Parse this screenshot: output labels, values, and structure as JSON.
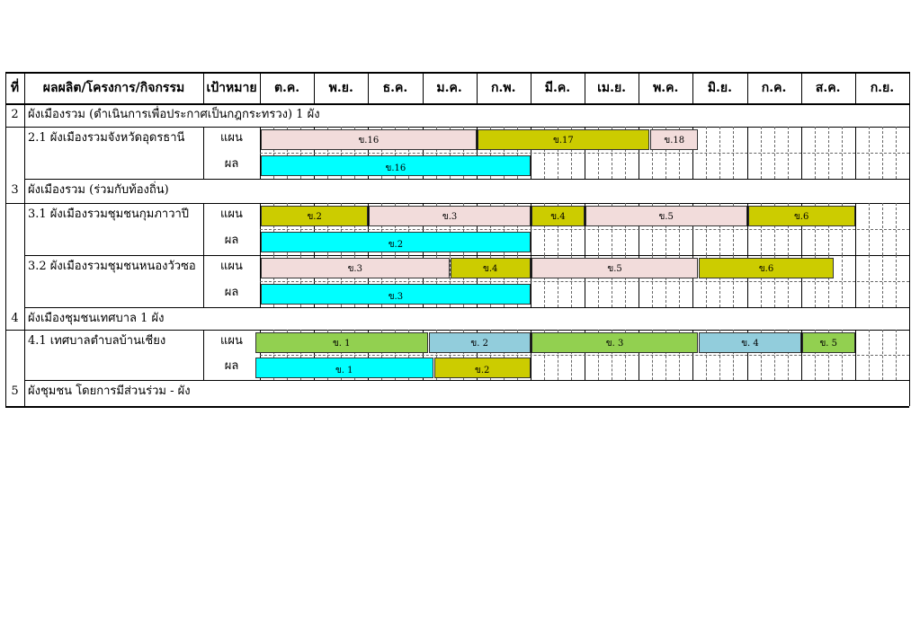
{
  "header": {
    "no": "ที่",
    "product": "ผลผลิต/โครงการ/กิจกรรม",
    "target": "เป้าหมาย",
    "months": [
      "ต.ค.",
      "พ.ย.",
      "ธ.ค.",
      "ม.ค.",
      "ก.พ.",
      "มี.ค.",
      "เม.ย.",
      "พ.ค.",
      "มิ.ย.",
      "ก.ค.",
      "ส.ค.",
      "ก.ย."
    ]
  },
  "sections": [
    {
      "no": "2",
      "title": "ผังเมืองรวม (ดำเนินการเพื่อประกาศเป็นกฎกระทรวง)  1 ผัง"
    },
    {
      "no": "3",
      "title": "ผังเมืองรวม (ร่วมกับท้องถิ่น)"
    },
    {
      "no": "4",
      "title": "ผังเมืองชุมชนเทศบาล  1   ผัง"
    },
    {
      "no": "5",
      "title": "ผังชุมชน โดยการมีส่วนร่วม -  ผัง"
    }
  ],
  "items": [
    {
      "name": "2.1 ผังเมืองรวมจังหวัดอุดรธานี",
      "plan_label": "แผน",
      "result_label": "ผล",
      "plan": [
        {
          "label": "ข.16",
          "start": 0,
          "end": 4,
          "color": "#f2dcdb"
        },
        {
          "label": "ข.17",
          "start": 4,
          "end": 7.2,
          "color": "#cccc00"
        },
        {
          "label": "ข.18",
          "start": 7.2,
          "end": 8.1,
          "color": "#f2dcdb"
        }
      ],
      "result": [
        {
          "label": "ข.16",
          "start": 0,
          "end": 5,
          "color": "#00ffff"
        }
      ]
    },
    {
      "name": "3.1 ผังเมืองรวมชุมชนกุมภาวาปี",
      "plan_label": "แผน",
      "result_label": "ผล",
      "plan": [
        {
          "label": "ข.2",
          "start": 0,
          "end": 2,
          "color": "#cccc00"
        },
        {
          "label": "ข.3",
          "start": 2,
          "end": 5,
          "color": "#f2dcdb"
        },
        {
          "label": "ข.4",
          "start": 5,
          "end": 6,
          "color": "#cccc00"
        },
        {
          "label": "ข.5",
          "start": 6,
          "end": 9,
          "color": "#f2dcdb"
        },
        {
          "label": "ข.6",
          "start": 9,
          "end": 11,
          "color": "#cccc00"
        }
      ],
      "result": [
        {
          "label": "ข.2",
          "start": 0,
          "end": 5,
          "color": "#00ffff"
        }
      ]
    },
    {
      "name": "3.2 ผังเมืองรวมชุมชนหนองวัวซอ",
      "plan_label": "แผน",
      "result_label": "ผล",
      "plan": [
        {
          "label": "ข.3",
          "start": 0,
          "end": 3.5,
          "color": "#f2dcdb"
        },
        {
          "label": "ข.4",
          "start": 3.5,
          "end": 5,
          "color": "#cccc00"
        },
        {
          "label": "ข.5",
          "start": 5,
          "end": 8.1,
          "color": "#f2dcdb"
        },
        {
          "label": "ข.6",
          "start": 8.1,
          "end": 10.6,
          "color": "#cccc00"
        }
      ],
      "result": [
        {
          "label": "ข.3",
          "start": 0,
          "end": 5,
          "color": "#00ffff"
        }
      ]
    },
    {
      "name": "4.1 เทศบาลตำบลบ้านเชียง",
      "plan_label": "แผน",
      "result_label": "ผล",
      "plan": [
        {
          "label": "ข. 1",
          "start": -0.1,
          "end": 3.1,
          "color": "#92d050"
        },
        {
          "label": "ข. 2",
          "start": 3.1,
          "end": 5,
          "color": "#92cddc"
        },
        {
          "label": "ข. 3",
          "start": 5,
          "end": 8.1,
          "color": "#92d050"
        },
        {
          "label": "ข. 4",
          "start": 8.1,
          "end": 10,
          "color": "#92cddc"
        },
        {
          "label": "ข. 5",
          "start": 10,
          "end": 11,
          "color": "#92d050"
        }
      ],
      "result": [
        {
          "label": "ข. 1",
          "start": -0.1,
          "end": 3.2,
          "color": "#00ffff"
        },
        {
          "label": "ข.2",
          "start": 3.2,
          "end": 5,
          "color": "#cccc00"
        }
      ]
    }
  ]
}
